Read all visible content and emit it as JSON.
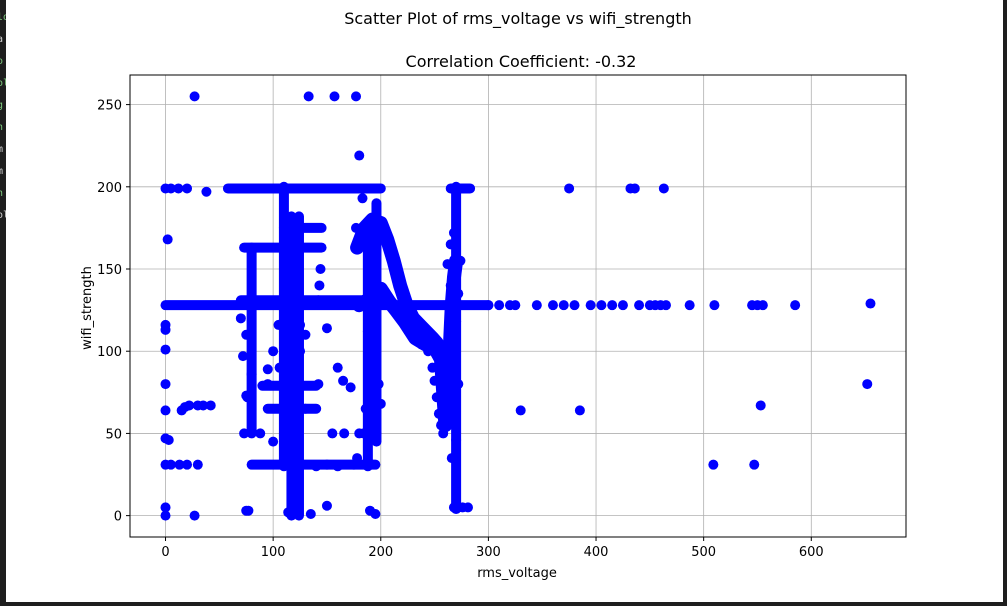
{
  "figure": {
    "suptitle": "Scatter Plot of rms_voltage vs wifi_strength",
    "title": "Correlation Coefficient: -0.32"
  },
  "colors": {
    "marker": "#0000ff",
    "grid": "#b0b0b0",
    "terminal_bg": "#1e1e1e",
    "terminal_green": "#7ec87e",
    "terminal_white": "#d0d0d0"
  },
  "chart_data": {
    "type": "scatter",
    "title": "Correlation Coefficient: -0.32",
    "xlabel": "rms_voltage",
    "ylabel": "wifi_strength",
    "xlim": [
      -33,
      688
    ],
    "ylim": [
      -13,
      268
    ],
    "xticks": [
      0,
      100,
      200,
      300,
      400,
      500,
      600
    ],
    "yticks": [
      0,
      50,
      100,
      150,
      200,
      250
    ],
    "grid": true,
    "legend": "none",
    "series": [
      {
        "color": "#0000ff",
        "points": [
          [
            27,
            255
          ],
          [
            133,
            255
          ],
          [
            157,
            255
          ],
          [
            177,
            255
          ],
          [
            180,
            219
          ],
          [
            0,
            199
          ],
          [
            5,
            199
          ],
          [
            12,
            199
          ],
          [
            20,
            199
          ],
          [
            38,
            197
          ],
          [
            375,
            199
          ],
          [
            432,
            199
          ],
          [
            436,
            199
          ],
          [
            463,
            199
          ],
          [
            2,
            168
          ],
          [
            0,
            116
          ],
          [
            0,
            113
          ],
          [
            0,
            101
          ],
          [
            0,
            80
          ],
          [
            0,
            64
          ],
          [
            0,
            47
          ],
          [
            3,
            46
          ],
          [
            0,
            31
          ],
          [
            5,
            31
          ],
          [
            13,
            31
          ],
          [
            20,
            31
          ],
          [
            30,
            31
          ],
          [
            15,
            64
          ],
          [
            18,
            66
          ],
          [
            22,
            67
          ],
          [
            30,
            67
          ],
          [
            35,
            67
          ],
          [
            42,
            67
          ],
          [
            0,
            5
          ],
          [
            0,
            0
          ],
          [
            27,
            0
          ],
          [
            75,
            3
          ],
          [
            77,
            3
          ],
          [
            114,
            2
          ],
          [
            135,
            1
          ],
          [
            150,
            6
          ],
          [
            190,
            3
          ],
          [
            195,
            1
          ],
          [
            70,
            120
          ],
          [
            75,
            110
          ],
          [
            72,
            97
          ],
          [
            80,
            86
          ],
          [
            75,
            73
          ],
          [
            76,
            72
          ],
          [
            73,
            50
          ],
          [
            88,
            50
          ],
          [
            100,
            45
          ],
          [
            95,
            89
          ],
          [
            95,
            80
          ],
          [
            106,
            90
          ],
          [
            100,
            100
          ],
          [
            130,
            110
          ],
          [
            125,
            100
          ],
          [
            120,
            80
          ],
          [
            150,
            114
          ],
          [
            142,
            80
          ],
          [
            144,
            150
          ],
          [
            143,
            140
          ],
          [
            142,
            131
          ],
          [
            155,
            50
          ],
          [
            166,
            50
          ],
          [
            180,
            50
          ],
          [
            160,
            90
          ],
          [
            165,
            82
          ],
          [
            172,
            78
          ],
          [
            188,
            112
          ],
          [
            193,
            180
          ],
          [
            183,
            193
          ],
          [
            122,
            25
          ],
          [
            120,
            60
          ],
          [
            130,
            65
          ],
          [
            140,
            30
          ],
          [
            150,
            31
          ],
          [
            160,
            30
          ],
          [
            175,
            31
          ],
          [
            178,
            35
          ],
          [
            186,
            65
          ],
          [
            189,
            63
          ],
          [
            190,
            120
          ],
          [
            192,
            105
          ],
          [
            195,
            100
          ],
          [
            198,
            80
          ],
          [
            200,
            68
          ],
          [
            196,
            50
          ],
          [
            184,
            50
          ],
          [
            177,
            175
          ],
          [
            330,
            64
          ],
          [
            385,
            64
          ],
          [
            509,
            31
          ],
          [
            547,
            31
          ],
          [
            553,
            67
          ],
          [
            652,
            80
          ],
          [
            655,
            129
          ],
          [
            300,
            128
          ],
          [
            310,
            128
          ],
          [
            320,
            128
          ],
          [
            325,
            128
          ],
          [
            345,
            128
          ],
          [
            360,
            128
          ],
          [
            370,
            128
          ],
          [
            380,
            128
          ],
          [
            395,
            128
          ],
          [
            405,
            128
          ],
          [
            415,
            128
          ],
          [
            425,
            128
          ],
          [
            440,
            128
          ],
          [
            450,
            128
          ],
          [
            455,
            128
          ],
          [
            460,
            128
          ],
          [
            465,
            128
          ],
          [
            487,
            128
          ],
          [
            510,
            128
          ],
          [
            545,
            128
          ],
          [
            550,
            128
          ],
          [
            555,
            128
          ],
          [
            585,
            128
          ],
          [
            226,
            112
          ],
          [
            232,
            108
          ],
          [
            238,
            104
          ],
          [
            244,
            100
          ],
          [
            248,
            90
          ],
          [
            250,
            82
          ],
          [
            252,
            72
          ],
          [
            254,
            62
          ],
          [
            256,
            55
          ],
          [
            258,
            50
          ],
          [
            262,
            58
          ],
          [
            264,
            70
          ],
          [
            266,
            85
          ],
          [
            268,
            100
          ],
          [
            270,
            118
          ],
          [
            272,
            135
          ],
          [
            274,
            155
          ],
          [
            266,
            35
          ],
          [
            270,
            46
          ],
          [
            268,
            67
          ],
          [
            272,
            80
          ],
          [
            268,
            199
          ],
          [
            272,
            199
          ],
          [
            276,
            199
          ],
          [
            280,
            199
          ],
          [
            268,
            5
          ],
          [
            272,
            5
          ],
          [
            276,
            5
          ],
          [
            281,
            5
          ],
          [
            265,
            165
          ],
          [
            268,
            172
          ],
          [
            262,
            153
          ],
          [
            265,
            140
          ]
        ],
        "horizontal_runs": [
          {
            "y": 128,
            "x": [
              0,
              300
            ]
          },
          {
            "y": 199,
            "x": [
              58,
              200
            ]
          },
          {
            "y": 199,
            "x": [
              265,
              283
            ]
          },
          {
            "y": 131,
            "x": [
              70,
              205
            ]
          },
          {
            "y": 163,
            "x": [
              73,
              145
            ]
          },
          {
            "y": 175,
            "x": [
              110,
              145
            ]
          },
          {
            "y": 31,
            "x": [
              80,
              195
            ]
          },
          {
            "y": 65,
            "x": [
              95,
              140
            ]
          },
          {
            "y": 79,
            "x": [
              90,
              140
            ]
          },
          {
            "y": 116,
            "x": [
              105,
              125
            ]
          }
        ],
        "vertical_runs": [
          {
            "x": 110,
            "y": [
              30,
              200
            ]
          },
          {
            "x": 117,
            "y": [
              0,
              182
            ]
          },
          {
            "x": 124,
            "y": [
              0,
              182
            ]
          },
          {
            "x": 80,
            "y": [
              50,
              163
            ]
          },
          {
            "x": 270,
            "y": [
              4,
              200
            ]
          },
          {
            "x": 188,
            "y": [
              30,
              175
            ]
          },
          {
            "x": 196,
            "y": [
              45,
              190
            ]
          }
        ],
        "curve_runs": [
          [
            [
              178,
              163
            ],
            [
              185,
              175
            ],
            [
              192,
              180
            ],
            [
              200,
              178
            ],
            [
              206,
              168
            ],
            [
              212,
              155
            ],
            [
              218,
              140
            ],
            [
              224,
              128
            ],
            [
              230,
              120
            ],
            [
              236,
              116
            ],
            [
              242,
              112
            ],
            [
              248,
              108
            ],
            [
              252,
              105
            ],
            [
              256,
              100
            ],
            [
              258,
              85
            ],
            [
              259,
              70
            ],
            [
              260,
              60
            ],
            [
              262,
              75
            ],
            [
              264,
              100
            ],
            [
              266,
              128
            ],
            [
              268,
              145
            ],
            [
              270,
              155
            ]
          ],
          [
            [
              180,
              128
            ],
            [
              190,
              132
            ],
            [
              200,
              138
            ],
            [
              208,
              130
            ],
            [
              214,
              125
            ],
            [
              222,
              118
            ],
            [
              232,
              108
            ],
            [
              242,
              104
            ],
            [
              250,
              102
            ],
            [
              256,
              95
            ],
            [
              258,
              75
            ],
            [
              260,
              55
            ]
          ]
        ]
      }
    ]
  }
}
